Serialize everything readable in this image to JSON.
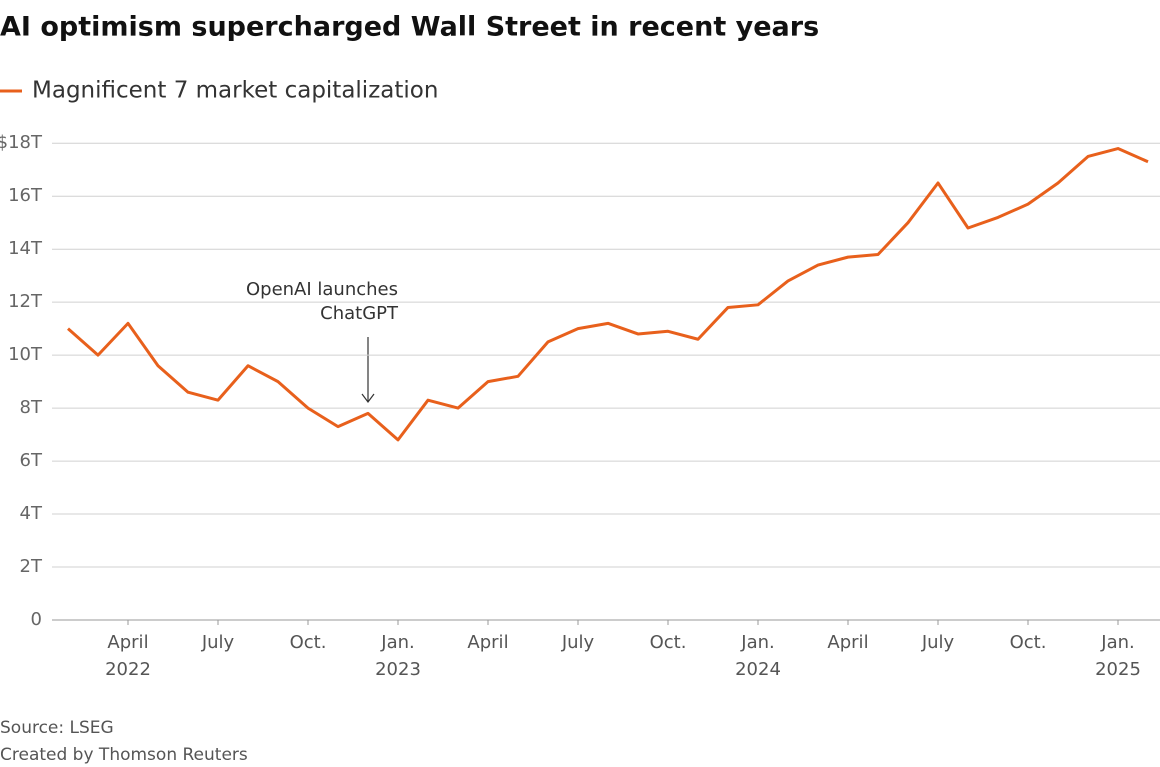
{
  "chart_data": {
    "type": "line",
    "title": "AI optimism supercharged Wall Street in recent years",
    "x": [
      "2022-02",
      "2022-03",
      "2022-04",
      "2022-05",
      "2022-06",
      "2022-07",
      "2022-08",
      "2022-09",
      "2022-10",
      "2022-11",
      "2022-12",
      "2023-01",
      "2023-02",
      "2023-03",
      "2023-04",
      "2023-05",
      "2023-06",
      "2023-07",
      "2023-08",
      "2023-09",
      "2023-10",
      "2023-11",
      "2023-12",
      "2024-01",
      "2024-02",
      "2024-03",
      "2024-04",
      "2024-05",
      "2024-06",
      "2024-07",
      "2024-08",
      "2024-09",
      "2024-10",
      "2024-11",
      "2024-12",
      "2025-01",
      "2025-02"
    ],
    "series": [
      {
        "name": "Magnificent 7 market capitalization",
        "color": "#e8601c",
        "values": [
          11.0,
          10.0,
          11.2,
          9.6,
          8.6,
          8.3,
          9.6,
          9.0,
          8.0,
          7.3,
          7.8,
          6.8,
          8.3,
          8.0,
          9.0,
          9.2,
          10.5,
          11.0,
          11.2,
          10.8,
          10.9,
          10.6,
          11.8,
          11.9,
          12.8,
          13.4,
          13.7,
          13.8,
          15.0,
          16.5,
          14.8,
          15.2,
          15.7,
          16.5,
          17.5,
          17.8,
          17.3
        ]
      }
    ],
    "xlim": [
      "2022-01",
      "2025-02"
    ],
    "xticks": [
      {
        "value": "2022-04",
        "label": "April"
      },
      {
        "value": "2022-07",
        "label": "July"
      },
      {
        "value": "2022-10",
        "label": "Oct."
      },
      {
        "value": "2023-01",
        "label": "Jan."
      },
      {
        "value": "2023-04",
        "label": "April"
      },
      {
        "value": "2023-07",
        "label": "July"
      },
      {
        "value": "2023-10",
        "label": "Oct."
      },
      {
        "value": "2024-01",
        "label": "Jan."
      },
      {
        "value": "2024-04",
        "label": "April"
      },
      {
        "value": "2024-07",
        "label": "July"
      },
      {
        "value": "2024-10",
        "label": "Oct."
      },
      {
        "value": "2025-01",
        "label": "Jan."
      }
    ],
    "xtick_years": [
      {
        "value": "2022-04",
        "label": "2022"
      },
      {
        "value": "2023-01",
        "label": "2023"
      },
      {
        "value": "2024-01",
        "label": "2024"
      },
      {
        "value": "2025-01",
        "label": "2025"
      }
    ],
    "ylim": [
      0,
      18.5
    ],
    "yticks": [
      0,
      {
        "value": 2,
        "label": "2T"
      },
      {
        "value": 4,
        "label": "4T"
      },
      {
        "value": 6,
        "label": "6T"
      },
      {
        "value": 8,
        "label": "8T"
      },
      {
        "value": 10,
        "label": "10T"
      },
      {
        "value": 12,
        "label": "12T"
      },
      {
        "value": 14,
        "label": "14T"
      },
      {
        "value": 16,
        "label": "16T"
      },
      {
        "value": 18,
        "label": "$18T"
      }
    ],
    "grid": true,
    "annotation": [
      "OpenAI launches",
      "ChatGPT"
    ],
    "source": "Source: LSEG",
    "credit": "Created by Thomson Reuters"
  }
}
